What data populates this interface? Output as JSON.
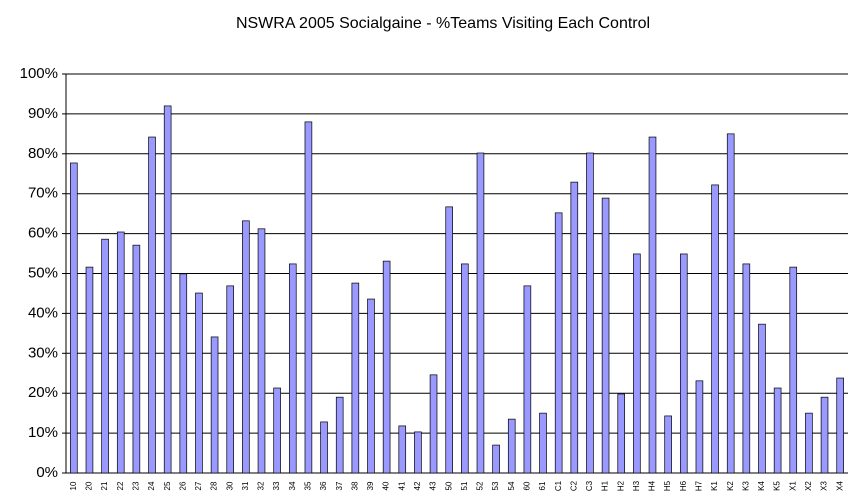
{
  "chart_data": {
    "type": "bar",
    "title": "NSWRA 2005 Socialgaine - %Teams Visiting Each Control",
    "categories": [
      "10",
      "20",
      "21",
      "22",
      "23",
      "24",
      "25",
      "26",
      "27",
      "28",
      "30",
      "31",
      "32",
      "33",
      "34",
      "35",
      "36",
      "37",
      "38",
      "39",
      "40",
      "41",
      "42",
      "43",
      "50",
      "51",
      "52",
      "53",
      "54",
      "60",
      "61",
      "C1",
      "C2",
      "C3",
      "H1",
      "H2",
      "H3",
      "H4",
      "H5",
      "H6",
      "H7",
      "K1",
      "K2",
      "K3",
      "K4",
      "K5",
      "X1",
      "X2",
      "X3",
      "X4"
    ],
    "values": [
      77.7,
      51.6,
      58.6,
      60.4,
      57.1,
      84.2,
      92,
      49.9,
      45.1,
      34.1,
      46.9,
      63.2,
      61.2,
      21.3,
      52.4,
      88,
      12.8,
      19,
      47.6,
      43.6,
      53.1,
      11.8,
      10.3,
      24.6,
      66.7,
      52.4,
      80.2,
      7,
      13.5,
      46.9,
      15,
      65.2,
      72.9,
      80.2,
      68.9,
      19.8,
      54.9,
      84.2,
      14.3,
      54.9,
      23.1,
      72.2,
      85,
      52.4,
      37.3,
      21.3,
      51.6,
      15,
      19,
      23.8
    ],
    "color": "#9999ff",
    "ylim": [
      0,
      100
    ],
    "yticks": [
      {
        "value": 0,
        "label": "0%"
      },
      {
        "value": 10,
        "label": "10%"
      },
      {
        "value": 20,
        "label": "20%"
      },
      {
        "value": 30,
        "label": "30%"
      },
      {
        "value": 40,
        "label": "40%"
      },
      {
        "value": 50,
        "label": "50%"
      },
      {
        "value": 60,
        "label": "60%"
      },
      {
        "value": 70,
        "label": "70%"
      },
      {
        "value": 80,
        "label": "80%"
      },
      {
        "value": 90,
        "label": "90%"
      },
      {
        "value": 100,
        "label": "100%"
      }
    ],
    "grid": true
  }
}
